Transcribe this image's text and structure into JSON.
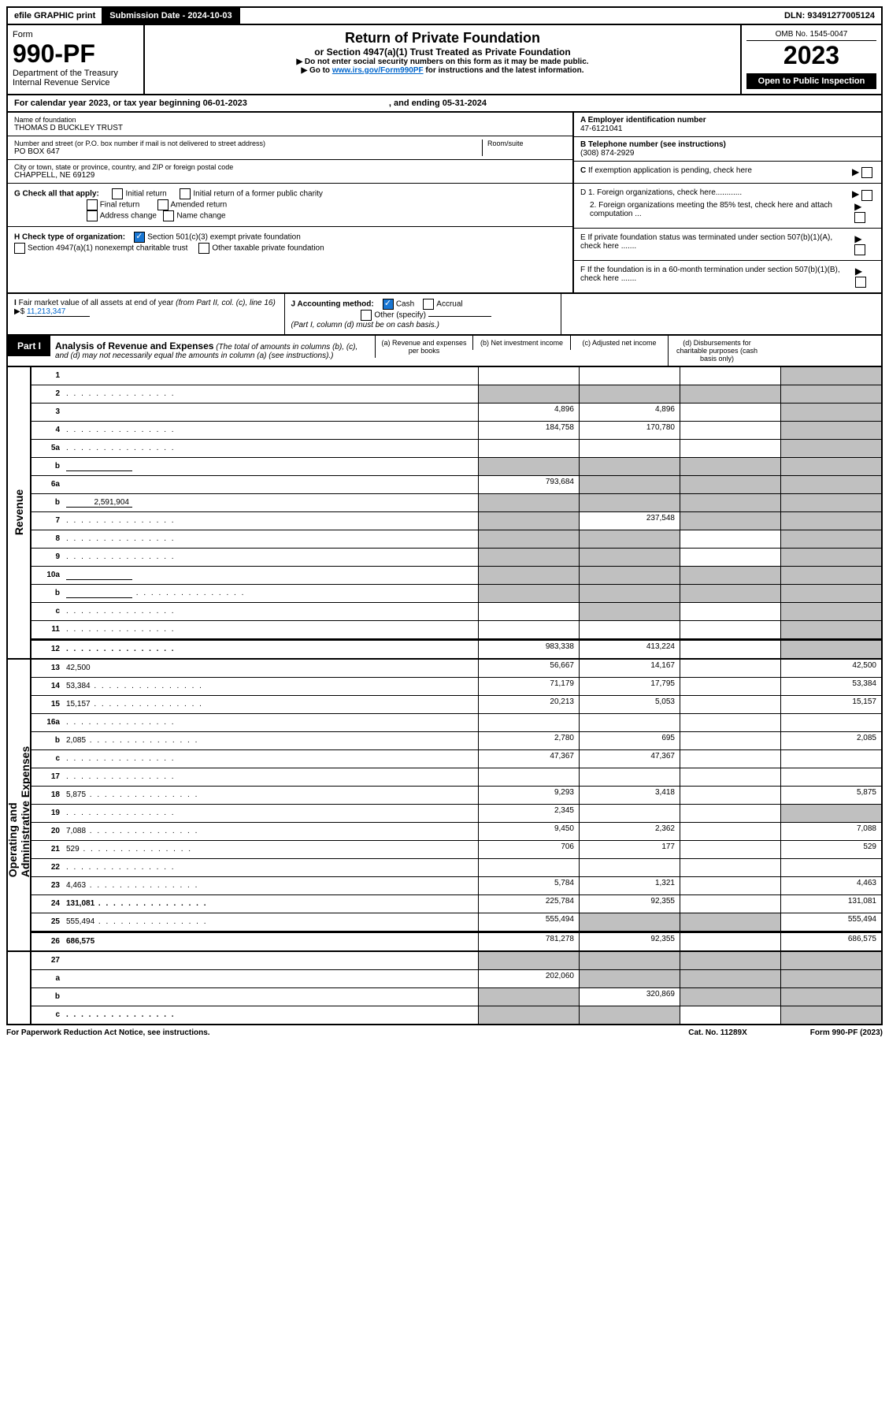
{
  "topbar": {
    "efile": "efile GRAPHIC print",
    "submission": "Submission Date - 2024-10-03",
    "dln": "DLN: 93491277005124"
  },
  "header": {
    "form_label": "Form",
    "form_number": "990-PF",
    "dept": "Department of the Treasury",
    "irs": "Internal Revenue Service",
    "title": "Return of Private Foundation",
    "subtitle": "or Section 4947(a)(1) Trust Treated as Private Foundation",
    "note1": "▶ Do not enter social security numbers on this form as it may be made public.",
    "note2": "▶ Go to ",
    "link": "www.irs.gov/Form990PF",
    "note2_end": " for instructions and the latest information.",
    "omb": "OMB No. 1545-0047",
    "year": "2023",
    "open": "Open to Public Inspection"
  },
  "cal_year": {
    "text": "For calendar year 2023, or tax year beginning 06-01-2023",
    "end": ", and ending 05-31-2024"
  },
  "info": {
    "name_label": "Name of foundation",
    "name": "THOMAS D BUCKLEY TRUST",
    "addr_label": "Number and street (or P.O. box number if mail is not delivered to street address)",
    "addr": "PO BOX 647",
    "room_label": "Room/suite",
    "city_label": "City or town, state or province, country, and ZIP or foreign postal code",
    "city": "CHAPPELL, NE  69129",
    "a_label": "A Employer identification number",
    "a_val": "47-6121041",
    "b_label": "B Telephone number (see instructions)",
    "b_val": "(308) 874-2929",
    "c_label": "C If exemption application is pending, check here",
    "d1": "D 1. Foreign organizations, check here............",
    "d2": "2. Foreign organizations meeting the 85% test, check here and attach computation ...",
    "e": "E  If private foundation status was terminated under section 507(b)(1)(A), check here .......",
    "f": "F  If the foundation is in a 60-month termination under section 507(b)(1)(B), check here .......",
    "g_label": "G Check all that apply:",
    "g_initial": "Initial return",
    "g_initial_former": "Initial return of a former public charity",
    "g_final": "Final return",
    "g_amended": "Amended return",
    "g_address": "Address change",
    "g_name": "Name change",
    "h_label": "H Check type of organization:",
    "h_501c3": "Section 501(c)(3) exempt private foundation",
    "h_4947": "Section 4947(a)(1) nonexempt charitable trust",
    "h_other": "Other taxable private foundation",
    "i_label": "I Fair market value of all assets at end of year (from Part II, col. (c), line 16)",
    "i_val": "11,213,347",
    "j_label": "J Accounting method:",
    "j_cash": "Cash",
    "j_accrual": "Accrual",
    "j_other": "Other (specify)",
    "j_note": "(Part I, column (d) must be on cash basis.)"
  },
  "part1": {
    "badge": "Part I",
    "title": "Analysis of Revenue and Expenses",
    "title_note": "(The total of amounts in columns (b), (c), and (d) may not necessarily equal the amounts in column (a) (see instructions).)",
    "col_a": "(a)   Revenue and expenses per books",
    "col_b": "(b)   Net investment income",
    "col_c": "(c)   Adjusted net income",
    "col_d": "(d)   Disbursements for charitable purposes (cash basis only)"
  },
  "sides": {
    "revenue": "Revenue",
    "expenses": "Operating and Administrative Expenses"
  },
  "rows": [
    {
      "n": "1",
      "d": "",
      "a": "",
      "b": "",
      "c": "",
      "grey": [
        "d"
      ]
    },
    {
      "n": "2",
      "d": "",
      "dots": true,
      "a": "",
      "b": "",
      "c": "",
      "grey": [
        "a",
        "b",
        "c",
        "d"
      ],
      "bold_not": true
    },
    {
      "n": "3",
      "d": "",
      "a": "4,896",
      "b": "4,896",
      "c": "",
      "grey": [
        "d"
      ]
    },
    {
      "n": "4",
      "d": "",
      "dots": true,
      "a": "184,758",
      "b": "170,780",
      "c": "",
      "grey": [
        "d"
      ]
    },
    {
      "n": "5a",
      "d": "",
      "dots": true,
      "a": "",
      "b": "",
      "c": "",
      "grey": [
        "d"
      ]
    },
    {
      "n": "b",
      "d": "",
      "blank": true,
      "a": "",
      "b": "",
      "c": "",
      "grey": [
        "a",
        "b",
        "c",
        "d"
      ]
    },
    {
      "n": "6a",
      "d": "",
      "a": "793,684",
      "b": "",
      "c": "",
      "grey": [
        "b",
        "c",
        "d"
      ]
    },
    {
      "n": "b",
      "d": "",
      "inline": "2,591,904",
      "a": "",
      "b": "",
      "c": "",
      "grey": [
        "a",
        "b",
        "c",
        "d"
      ]
    },
    {
      "n": "7",
      "d": "",
      "dots": true,
      "a": "",
      "b": "237,548",
      "c": "",
      "grey": [
        "a",
        "c",
        "d"
      ]
    },
    {
      "n": "8",
      "d": "",
      "dots": true,
      "a": "",
      "b": "",
      "c": "",
      "grey": [
        "a",
        "b",
        "d"
      ]
    },
    {
      "n": "9",
      "d": "",
      "dots": true,
      "a": "",
      "b": "",
      "c": "",
      "grey": [
        "a",
        "b",
        "d"
      ]
    },
    {
      "n": "10a",
      "d": "",
      "blank": true,
      "a": "",
      "b": "",
      "c": "",
      "grey": [
        "a",
        "b",
        "c",
        "d"
      ]
    },
    {
      "n": "b",
      "d": "",
      "dots": true,
      "blank": true,
      "a": "",
      "b": "",
      "c": "",
      "grey": [
        "a",
        "b",
        "c",
        "d"
      ]
    },
    {
      "n": "c",
      "d": "",
      "dots": true,
      "a": "",
      "b": "",
      "c": "",
      "grey": [
        "b",
        "d"
      ]
    },
    {
      "n": "11",
      "d": "",
      "dots": true,
      "a": "",
      "b": "",
      "c": "",
      "grey": [
        "d"
      ]
    },
    {
      "n": "12",
      "d": "",
      "dots": true,
      "bold": true,
      "a": "983,338",
      "b": "413,224",
      "c": "",
      "grey": [
        "d"
      ]
    }
  ],
  "exp_rows": [
    {
      "n": "13",
      "d": "42,500",
      "a": "56,667",
      "b": "14,167",
      "c": ""
    },
    {
      "n": "14",
      "d": "53,384",
      "dots": true,
      "a": "71,179",
      "b": "17,795",
      "c": ""
    },
    {
      "n": "15",
      "d": "15,157",
      "dots": true,
      "a": "20,213",
      "b": "5,053",
      "c": ""
    },
    {
      "n": "16a",
      "d": "",
      "dots": true,
      "a": "",
      "b": "",
      "c": ""
    },
    {
      "n": "b",
      "d": "2,085",
      "dots": true,
      "a": "2,780",
      "b": "695",
      "c": ""
    },
    {
      "n": "c",
      "d": "",
      "dots": true,
      "a": "47,367",
      "b": "47,367",
      "c": ""
    },
    {
      "n": "17",
      "d": "",
      "dots": true,
      "a": "",
      "b": "",
      "c": ""
    },
    {
      "n": "18",
      "d": "5,875",
      "dots": true,
      "a": "9,293",
      "b": "3,418",
      "c": ""
    },
    {
      "n": "19",
      "d": "",
      "dots": true,
      "a": "2,345",
      "b": "",
      "c": "",
      "grey": [
        "d"
      ]
    },
    {
      "n": "20",
      "d": "7,088",
      "dots": true,
      "a": "9,450",
      "b": "2,362",
      "c": ""
    },
    {
      "n": "21",
      "d": "529",
      "dots": true,
      "a": "706",
      "b": "177",
      "c": ""
    },
    {
      "n": "22",
      "d": "",
      "dots": true,
      "a": "",
      "b": "",
      "c": ""
    },
    {
      "n": "23",
      "d": "4,463",
      "dots": true,
      "a": "5,784",
      "b": "1,321",
      "c": ""
    },
    {
      "n": "24",
      "d": "131,081",
      "dots": true,
      "bold": true,
      "a": "225,784",
      "b": "92,355",
      "c": ""
    },
    {
      "n": "25",
      "d": "555,494",
      "dots": true,
      "a": "555,494",
      "b": "",
      "c": "",
      "grey": [
        "b",
        "c"
      ]
    },
    {
      "n": "26",
      "d": "686,575",
      "bold": true,
      "a": "781,278",
      "b": "92,355",
      "c": ""
    }
  ],
  "final_rows": [
    {
      "n": "27",
      "d": "",
      "a": "",
      "b": "",
      "c": "",
      "grey": [
        "a",
        "b",
        "c",
        "d"
      ]
    },
    {
      "n": "a",
      "d": "",
      "bold": true,
      "a": "202,060",
      "b": "",
      "c": "",
      "grey": [
        "b",
        "c",
        "d"
      ]
    },
    {
      "n": "b",
      "d": "",
      "bold": true,
      "a": "",
      "b": "320,869",
      "c": "",
      "grey": [
        "a",
        "c",
        "d"
      ]
    },
    {
      "n": "c",
      "d": "",
      "dots": true,
      "bold": true,
      "a": "",
      "b": "",
      "c": "",
      "grey": [
        "a",
        "b",
        "d"
      ]
    }
  ],
  "footer": {
    "left": "For Paperwork Reduction Act Notice, see instructions.",
    "mid": "Cat. No. 11289X",
    "right": "Form 990-PF (2023)"
  }
}
